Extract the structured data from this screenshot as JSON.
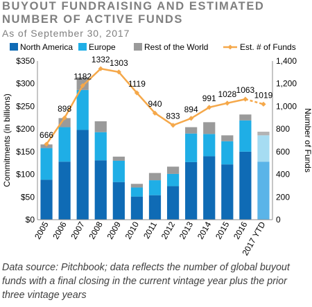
{
  "title": "BUYOUT FUNDRAISING AND ESTIMATED NUMBER OF ACTIVE FUNDS",
  "subtitle": "As of September 30, 2017",
  "footnote": "Data source: Pitchbook; data reflects the number of global buyout funds with a final closing in the current vintage year plus the prior three vintage years",
  "chart_data": {
    "type": "bar",
    "stacked": true,
    "categories": [
      "2005",
      "2006",
      "2007",
      "2008",
      "2009",
      "2010",
      "2011",
      "2012",
      "2013",
      "2014",
      "2015",
      "2016",
      "2017 YTD"
    ],
    "series": [
      {
        "name": "North America",
        "color": "#0f6bb5",
        "values": [
          88,
          128,
          198,
          131,
          83,
          51,
          54,
          74,
          127,
          140,
          122,
          150,
          128
        ]
      },
      {
        "name": "Europe",
        "color": "#1faee6",
        "values": [
          70,
          76,
          88,
          62,
          47,
          20,
          33,
          27,
          63,
          49,
          51,
          69,
          58
        ]
      },
      {
        "name": "Rest of the World",
        "color": "#9a9a9a",
        "values": [
          8,
          20,
          28,
          24,
          9,
          8,
          16,
          16,
          14,
          26,
          13,
          13,
          8
        ]
      }
    ],
    "projected_colors": {
      "North America": "#5ab4e8",
      "Europe": "#a6dcf2",
      "Rest of the World": "#b3b3b3"
    },
    "line_series": {
      "name": "Est. # of Funds",
      "color": "#f5a84a",
      "values": [
        666,
        898,
        1182,
        1332,
        1303,
        1119,
        940,
        833,
        894,
        991,
        1028,
        1063,
        1019
      ],
      "labels": [
        "666",
        "898",
        "1182",
        "1332",
        "1303",
        "1119",
        "940",
        "833",
        "894",
        "991",
        "1028",
        "1063",
        "1019"
      ]
    },
    "ylabel": "Commitments (in billions)",
    "ylim": [
      0,
      350
    ],
    "yticks": [
      "$0",
      "$50",
      "$100",
      "$150",
      "$200",
      "$250",
      "$300",
      "$350"
    ],
    "y2label": "Number of Funds",
    "y2lim": [
      0,
      1400
    ],
    "y2ticks": [
      "0",
      "200",
      "400",
      "600",
      "800",
      "1,000",
      "1,200",
      "1,400"
    ],
    "legend_position": "top",
    "grid": false
  }
}
